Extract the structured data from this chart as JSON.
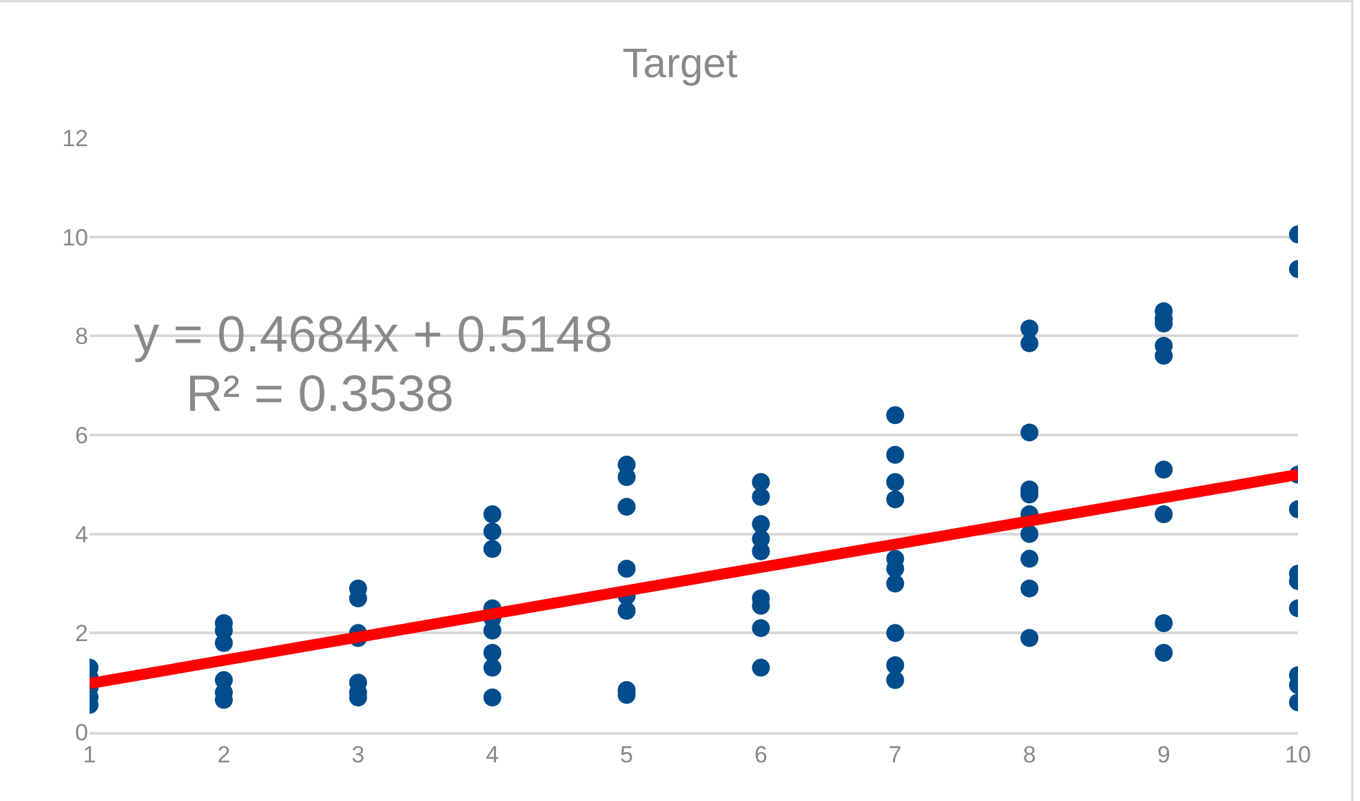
{
  "chart_data": {
    "type": "scatter",
    "title": "Target",
    "xlim": [
      1,
      10
    ],
    "xticks": [
      1,
      2,
      3,
      4,
      5,
      6,
      7,
      8,
      9,
      10
    ],
    "ylim": [
      0,
      12
    ],
    "yticks": [
      0,
      2,
      4,
      6,
      8,
      10,
      12
    ],
    "grid": "y",
    "marker": "circle",
    "annotations": [
      "y = 0.4684x + 0.5148",
      "R² = 0.3538"
    ],
    "series": [
      {
        "color": "#004c8c",
        "x": [
          1,
          1,
          1,
          1,
          1,
          2,
          2,
          2,
          2,
          2,
          2,
          3,
          3,
          3,
          3,
          3,
          3,
          3,
          4,
          4,
          4,
          4,
          4,
          4,
          4,
          4,
          4,
          5,
          5,
          5,
          5,
          5,
          5,
          5,
          5,
          6,
          6,
          6,
          6,
          6,
          6,
          6,
          6,
          6,
          7,
          7,
          7,
          7,
          7,
          7,
          7,
          7,
          7,
          7,
          8,
          8,
          8,
          8,
          8,
          8,
          8,
          8,
          8,
          8,
          9,
          9,
          9,
          9,
          9,
          9,
          9,
          9,
          9,
          10,
          10,
          10,
          10,
          10,
          10,
          10,
          10,
          10,
          10
        ],
        "values": [
          1.3,
          1.1,
          0.9,
          0.7,
          0.55,
          2.2,
          2.05,
          1.8,
          1.05,
          0.8,
          0.65,
          2.9,
          2.7,
          2.0,
          1.9,
          1.0,
          0.8,
          0.7,
          4.4,
          4.05,
          3.7,
          2.5,
          2.3,
          2.05,
          1.6,
          1.3,
          0.7,
          5.4,
          5.15,
          4.55,
          3.3,
          2.75,
          2.45,
          0.85,
          0.75,
          5.05,
          4.75,
          4.2,
          3.9,
          3.65,
          2.7,
          2.55,
          2.1,
          1.3,
          6.4,
          5.6,
          5.05,
          4.7,
          3.5,
          3.3,
          3.0,
          2.0,
          1.35,
          1.05,
          8.15,
          7.85,
          6.05,
          4.9,
          4.8,
          4.4,
          4.0,
          3.5,
          2.9,
          1.9,
          8.5,
          8.35,
          8.25,
          7.8,
          7.6,
          5.3,
          4.4,
          2.2,
          1.6,
          10.05,
          9.35,
          5.2,
          4.5,
          3.2,
          3.05,
          2.5,
          1.15,
          0.95,
          0.6
        ]
      },
      {
        "type": "line",
        "color": "#ff0000",
        "x": [
          1,
          10
        ],
        "values": [
          0.98,
          5.2
        ],
        "marker": "none",
        "line_style": "solid"
      }
    ]
  }
}
